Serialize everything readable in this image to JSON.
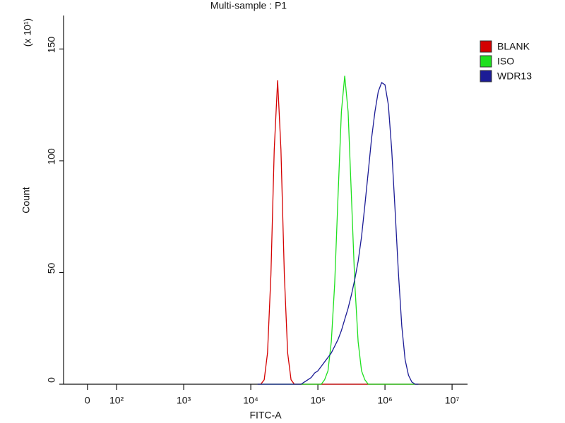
{
  "chart_data": {
    "type": "line",
    "title": "Multi-sample : P1",
    "x_label": "FITC-A",
    "y_label": "Count",
    "y_multiplier_label": "(x 10¹)",
    "xscale": "biexponential",
    "xlim": [
      -82,
      17000000
    ],
    "xticks": [
      0,
      {
        "value": 100,
        "label": "10²"
      },
      {
        "value": 1000,
        "label": "10³"
      },
      {
        "value": 10000,
        "label": "10⁴"
      },
      {
        "value": 100000,
        "label": "10⁵"
      },
      {
        "value": 1000000,
        "label": "10⁶"
      },
      {
        "value": 10000000,
        "label": "10⁷"
      }
    ],
    "ylim": [
      0,
      165
    ],
    "yticks": [
      0,
      50,
      100,
      150
    ],
    "legend": "upper right",
    "x": [
      12589,
      14125,
      15849,
      17783,
      19953,
      22387,
      25119,
      28184,
      31623,
      35481,
      39811,
      44668,
      50119,
      56234,
      63096,
      70795,
      79433,
      89125,
      100000,
      112202,
      125893,
      141254,
      158489,
      177828,
      199526,
      223872,
      251189,
      281838,
      316228,
      354813,
      398107,
      446684,
      501187,
      562341,
      630957,
      707946,
      794328,
      891251,
      1000000,
      1122018,
      1258925,
      1412538,
      1584893,
      1778279,
      1995262,
      2238721,
      2511886,
      2818383,
      3162278
    ],
    "series": [
      {
        "name": "BLANK",
        "color": "#d40000",
        "values": [
          0,
          0,
          2,
          14,
          49,
          105,
          136,
          105,
          49,
          14,
          2,
          0,
          0,
          0,
          0,
          0,
          0,
          0,
          0,
          0,
          0,
          0,
          0,
          0,
          0,
          0,
          0,
          0,
          0,
          0,
          0,
          0,
          0,
          0,
          0,
          0,
          0,
          0,
          0,
          0,
          0,
          0,
          0,
          0,
          0,
          0,
          0,
          0,
          0
        ]
      },
      {
        "name": "ISO",
        "color": "#1ee01e",
        "values": [
          0,
          0,
          0,
          0,
          0,
          0,
          0,
          0,
          0,
          0,
          0,
          0,
          0,
          0,
          0,
          0,
          0,
          0,
          0,
          0,
          2,
          6,
          19,
          45,
          84,
          122,
          138,
          122,
          84,
          45,
          19,
          6,
          2,
          0,
          0,
          0,
          0,
          0,
          0,
          0,
          0,
          0,
          0,
          0,
          0,
          0,
          0,
          0,
          0
        ]
      },
      {
        "name": "WDR13",
        "color": "#1c1c96",
        "values": [
          0,
          0,
          0,
          0,
          0,
          0,
          0,
          0,
          0,
          0,
          0,
          0,
          0,
          0,
          1,
          2,
          3,
          5,
          6,
          8,
          10,
          12,
          14,
          17,
          20,
          24,
          29,
          34,
          40,
          47,
          55,
          66,
          80,
          95,
          110,
          122,
          131,
          135,
          134,
          125,
          105,
          78,
          50,
          26,
          11,
          4,
          1,
          0,
          0
        ]
      }
    ]
  }
}
